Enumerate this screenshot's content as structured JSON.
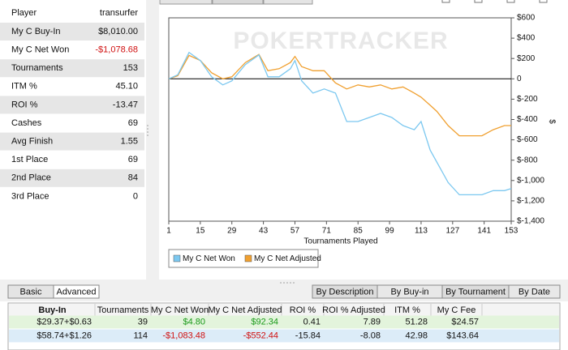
{
  "stats": {
    "header": [
      "Player",
      "transurfer"
    ],
    "rows": [
      [
        "My C Buy-In",
        "$8,010.00"
      ],
      [
        "My C Net Won",
        "-$1,078.68"
      ],
      [
        "Tournaments",
        "153"
      ],
      [
        "ITM %",
        "45.10"
      ],
      [
        "ROI %",
        "-13.47"
      ],
      [
        "Cashes",
        "69"
      ],
      [
        "Avg Finish",
        "1.55"
      ],
      [
        "1st Place",
        "69"
      ],
      [
        "2nd Place",
        "84"
      ],
      [
        "3rd Place",
        "0"
      ]
    ]
  },
  "chart_data": {
    "type": "line",
    "watermark": "POKERTRACKER",
    "x_label": "Tournaments Played",
    "y_label": "$",
    "x": [
      1,
      5,
      10,
      15,
      20,
      25,
      29,
      35,
      41,
      45,
      50,
      55,
      57,
      60,
      65,
      70,
      75,
      80,
      85,
      90,
      95,
      100,
      105,
      110,
      113,
      117,
      120,
      125,
      130,
      135,
      140,
      145,
      150,
      153
    ],
    "xlim": [
      1,
      153
    ],
    "xticks": [
      1,
      15,
      29,
      43,
      57,
      71,
      85,
      99,
      113,
      127,
      141,
      153
    ],
    "ylim": [
      -1400,
      600
    ],
    "yticks": [
      {
        "value": 600,
        "label": "$600"
      },
      {
        "value": 400,
        "label": "$400"
      },
      {
        "value": 200,
        "label": "$200"
      },
      0,
      {
        "value": -200,
        "label": "$-200"
      },
      {
        "value": -400,
        "label": "$-400"
      },
      {
        "value": -600,
        "label": "$-600"
      },
      {
        "value": -800,
        "label": "$-800"
      },
      {
        "value": -1000,
        "label": "$-1,000"
      },
      {
        "value": -1200,
        "label": "$-1,200"
      },
      {
        "value": -1400,
        "label": "$-1,400"
      }
    ],
    "series": [
      {
        "name": "My C Net Won",
        "color": "#7cc8f0",
        "values": [
          0,
          40,
          260,
          180,
          20,
          -60,
          -20,
          140,
          235,
          20,
          20,
          100,
          180,
          -20,
          -140,
          -100,
          -140,
          -420,
          -420,
          -380,
          -340,
          -380,
          -460,
          -500,
          -420,
          -700,
          -820,
          -1020,
          -1140,
          -1140,
          -1140,
          -1100,
          -1100,
          -1080
        ]
      },
      {
        "name": "My C Net Adjusted",
        "color": "#f0a030",
        "values": [
          0,
          30,
          230,
          180,
          60,
          0,
          20,
          160,
          240,
          80,
          100,
          160,
          220,
          120,
          80,
          80,
          -40,
          -100,
          -60,
          -80,
          -60,
          -100,
          -80,
          -140,
          -180,
          -260,
          -320,
          -460,
          -560,
          -560,
          -560,
          -500,
          -460,
          -460
        ]
      }
    ]
  },
  "mode_buttons": [
    "Basic",
    "Advanced"
  ],
  "view_buttons": [
    "By Description",
    "By Buy-in",
    "By Tournament",
    "By Date"
  ],
  "table": {
    "columns": [
      "Buy-In",
      "Tournaments",
      "My C Net Won",
      "My C Net Adjusted",
      "ROI %",
      "ROI % Adjusted",
      "ITM %",
      "My C Fee"
    ],
    "rows": [
      [
        "$29.37+$0.63",
        "39",
        "$4.80",
        "$92.34",
        "0.41",
        "7.89",
        "51.28",
        "$24.57"
      ],
      [
        "$58.74+$1.26",
        "114",
        "-$1,083.48",
        "-$552.44",
        "-15.84",
        "-8.08",
        "42.98",
        "$143.64"
      ]
    ]
  }
}
